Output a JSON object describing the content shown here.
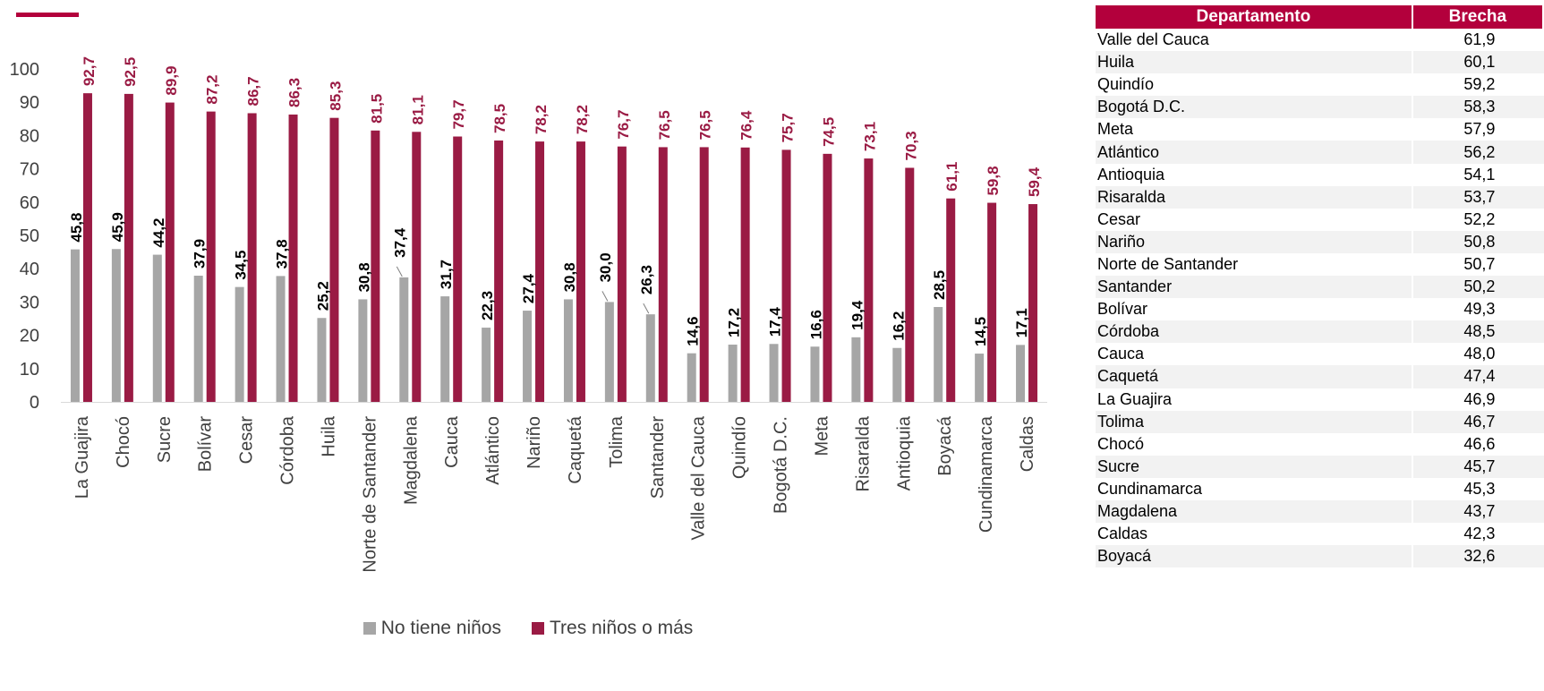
{
  "colors": {
    "accent": "#b3003c",
    "series_a": "#a6a6a6",
    "series_b": "#9a1b44",
    "label_a": "#000000",
    "label_b": "#9a1b44",
    "table_header": "#b3003c"
  },
  "chart_data": {
    "type": "bar",
    "title": "",
    "xlabel": "",
    "ylabel": "",
    "ylim": [
      0,
      100
    ],
    "yticks": [
      "0",
      "10",
      "20",
      "30",
      "40",
      "50",
      "60",
      "70",
      "80",
      "90",
      "100"
    ],
    "legend_position": "bottom",
    "categories": [
      "La Guajira",
      "Chocó",
      "Sucre",
      "Bolívar",
      "Cesar",
      "Córdoba",
      "Huila",
      "Norte de Santander",
      "Magdalena",
      "Cauca",
      "Atlántico",
      "Nariño",
      "Caquetá",
      "Tolima",
      "Santander",
      "Valle del Cauca",
      "Quindío",
      "Bogotá D.C.",
      "Meta",
      "Risaralda",
      "Antioquia",
      "Boyacá",
      "Cundinamarca",
      "Caldas"
    ],
    "series": [
      {
        "name": "No tiene niños",
        "values": [
          45.8,
          45.9,
          44.2,
          37.9,
          34.5,
          37.8,
          25.2,
          30.8,
          37.4,
          31.7,
          22.3,
          27.4,
          30.8,
          30.0,
          26.3,
          14.6,
          17.2,
          17.4,
          16.6,
          19.4,
          16.2,
          28.5,
          14.5,
          17.1
        ],
        "labels": [
          "45,8",
          "45,9",
          "44,2",
          "37,9",
          "34,5",
          "37,8",
          "25,2",
          "30,8",
          "37,4",
          "31,7",
          "22,3",
          "27,4",
          "30,8",
          "30,0",
          "26,3",
          "14,6",
          "17,2",
          "17,4",
          "16,6",
          "19,4",
          "16,2",
          "28,5",
          "14,5",
          "17,1"
        ]
      },
      {
        "name": "Tres niños o más",
        "values": [
          92.7,
          92.5,
          89.9,
          87.2,
          86.7,
          86.3,
          85.3,
          81.5,
          81.1,
          79.7,
          78.5,
          78.2,
          78.2,
          76.7,
          76.5,
          76.5,
          76.4,
          75.7,
          74.5,
          73.1,
          70.3,
          61.1,
          59.8,
          59.4
        ],
        "labels": [
          "92,7",
          "92,5",
          "89,9",
          "87,2",
          "86,7",
          "86,3",
          "85,3",
          "81,5",
          "81,1",
          "79,7",
          "78,5",
          "78,2",
          "78,2",
          "76,7",
          "76,5",
          "76,5",
          "76,4",
          "75,7",
          "74,5",
          "73,1",
          "70,3",
          "61,1",
          "59,8",
          "59,4"
        ]
      }
    ]
  },
  "table": {
    "headers": [
      "Departamento",
      "Brecha"
    ],
    "rows": [
      [
        "Valle del Cauca",
        "61,9"
      ],
      [
        "Huila",
        "60,1"
      ],
      [
        "Quindío",
        "59,2"
      ],
      [
        "Bogotá D.C.",
        "58,3"
      ],
      [
        "Meta",
        "57,9"
      ],
      [
        "Atlántico",
        "56,2"
      ],
      [
        "Antioquia",
        "54,1"
      ],
      [
        "Risaralda",
        "53,7"
      ],
      [
        "Cesar",
        "52,2"
      ],
      [
        "Nariño",
        "50,8"
      ],
      [
        "Norte de Santander",
        "50,7"
      ],
      [
        "Santander",
        "50,2"
      ],
      [
        "Bolívar",
        "49,3"
      ],
      [
        "Córdoba",
        "48,5"
      ],
      [
        "Cauca",
        "48,0"
      ],
      [
        "Caquetá",
        "47,4"
      ],
      [
        "La Guajira",
        "46,9"
      ],
      [
        "Tolima",
        "46,7"
      ],
      [
        "Chocó",
        "46,6"
      ],
      [
        "Sucre",
        "45,7"
      ],
      [
        "Cundinamarca",
        "45,3"
      ],
      [
        "Magdalena",
        "43,7"
      ],
      [
        "Caldas",
        "42,3"
      ],
      [
        "Boyacá",
        "32,6"
      ]
    ]
  }
}
